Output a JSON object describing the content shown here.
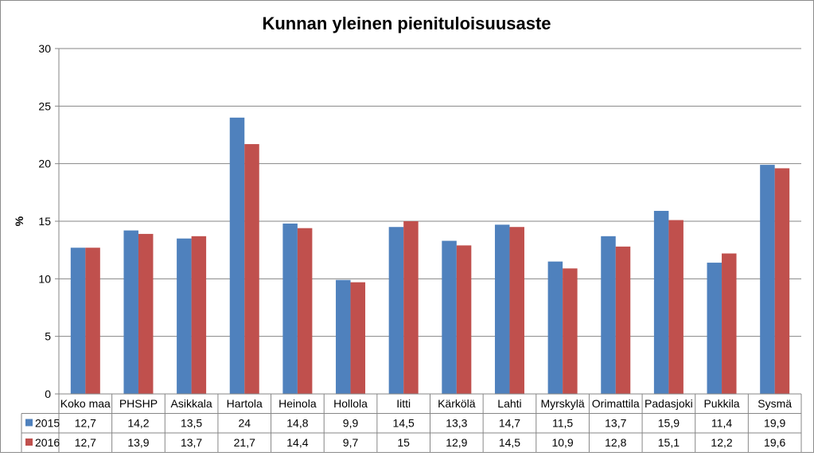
{
  "chart_data": {
    "type": "bar",
    "title": "Kunnan yleinen pienituloisuusaste",
    "ylabel": "%",
    "xlabel": "",
    "ylim": [
      0,
      30
    ],
    "yticks": [
      0,
      5,
      10,
      15,
      20,
      25,
      30
    ],
    "grid": true,
    "legend": "data-table",
    "categories": [
      "Koko maa",
      "PHSHP",
      "Asikkala",
      "Hartola",
      "Heinola",
      "Hollola",
      "Iitti",
      "Kärkölä",
      "Lahti",
      "Myrskylä",
      "Orimattila",
      "Padasjoki",
      "Pukkila",
      "Sysmä"
    ],
    "series": [
      {
        "name": "2015",
        "color": "#4f81bd",
        "values": [
          12.7,
          14.2,
          13.5,
          24,
          14.8,
          9.9,
          14.5,
          13.3,
          14.7,
          11.5,
          13.7,
          15.9,
          11.4,
          19.9
        ],
        "labels": [
          "12,7",
          "14,2",
          "13,5",
          "24",
          "14,8",
          "9,9",
          "14,5",
          "13,3",
          "14,7",
          "11,5",
          "13,7",
          "15,9",
          "11,4",
          "19,9"
        ]
      },
      {
        "name": "2016",
        "color": "#c0504d",
        "values": [
          12.7,
          13.9,
          13.7,
          21.7,
          14.4,
          9.7,
          15,
          12.9,
          14.5,
          10.9,
          12.8,
          15.1,
          12.2,
          19.6
        ],
        "labels": [
          "12,7",
          "13,9",
          "13,7",
          "21,7",
          "14,4",
          "9,7",
          "15",
          "12,9",
          "14,5",
          "10,9",
          "12,8",
          "15,1",
          "12,2",
          "19,6"
        ]
      }
    ]
  }
}
